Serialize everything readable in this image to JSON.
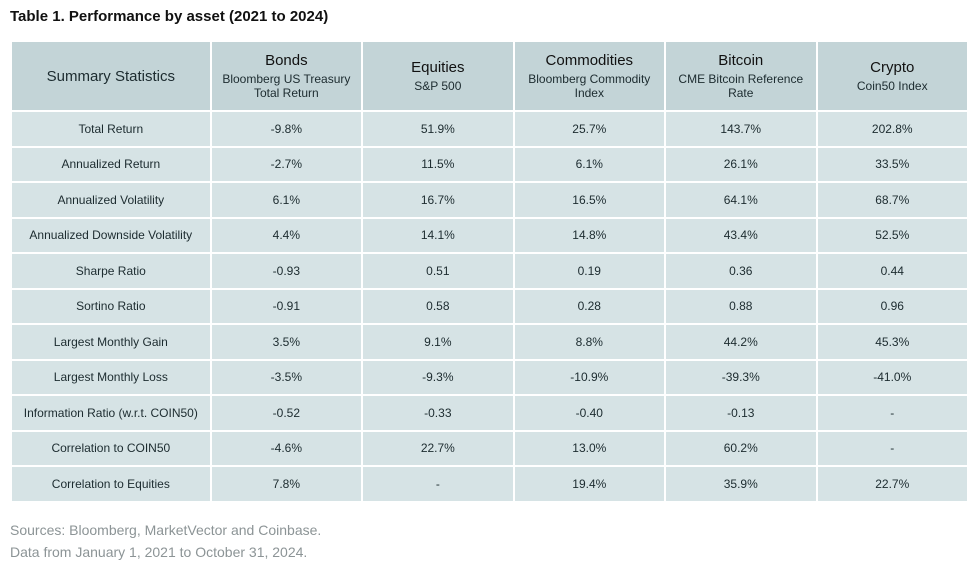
{
  "title": "Table 1. Performance by asset (2021 to 2024)",
  "table": {
    "header": {
      "stat_label": "Summary Statistics",
      "columns": [
        {
          "name": "Bonds",
          "sub": "Bloomberg US Treasury Total Return"
        },
        {
          "name": "Equities",
          "sub": "S&P 500"
        },
        {
          "name": "Commodities",
          "sub": "Bloomberg Commodity Index"
        },
        {
          "name": "Bitcoin",
          "sub": "CME Bitcoin Reference Rate"
        },
        {
          "name": "Crypto",
          "sub": "Coin50 Index"
        }
      ]
    },
    "rows": [
      {
        "label": "Total Return",
        "values": [
          "-9.8%",
          "51.9%",
          "25.7%",
          "143.7%",
          "202.8%"
        ]
      },
      {
        "label": "Annualized Return",
        "values": [
          "-2.7%",
          "11.5%",
          "6.1%",
          "26.1%",
          "33.5%"
        ]
      },
      {
        "label": "Annualized Volatility",
        "values": [
          "6.1%",
          "16.7%",
          "16.5%",
          "64.1%",
          "68.7%"
        ]
      },
      {
        "label": "Annualized Downside Volatility",
        "values": [
          "4.4%",
          "14.1%",
          "14.8%",
          "43.4%",
          "52.5%"
        ]
      },
      {
        "label": "Sharpe Ratio",
        "values": [
          "-0.93",
          "0.51",
          "0.19",
          "0.36",
          "0.44"
        ]
      },
      {
        "label": "Sortino Ratio",
        "values": [
          "-0.91",
          "0.58",
          "0.28",
          "0.88",
          "0.96"
        ]
      },
      {
        "label": "Largest Monthly Gain",
        "values": [
          "3.5%",
          "9.1%",
          "8.8%",
          "44.2%",
          "45.3%"
        ]
      },
      {
        "label": "Largest Monthly Loss",
        "values": [
          "-3.5%",
          "-9.3%",
          "-10.9%",
          "-39.3%",
          "-41.0%"
        ]
      },
      {
        "label": "Information Ratio (w.r.t. COIN50)",
        "values": [
          "-0.52",
          "-0.33",
          "-0.40",
          "-0.13",
          "-"
        ]
      },
      {
        "label": "Correlation to COIN50",
        "values": [
          "-4.6%",
          "22.7%",
          "13.0%",
          "60.2%",
          "-"
        ]
      },
      {
        "label": "Correlation to Equities",
        "values": [
          "7.8%",
          "-",
          "19.4%",
          "35.9%",
          "22.7%"
        ]
      }
    ]
  },
  "footer": {
    "sources": "Sources: Bloomberg, MarketVector and Coinbase.",
    "date_range": "Data from January 1, 2021 to October 31, 2024."
  }
}
